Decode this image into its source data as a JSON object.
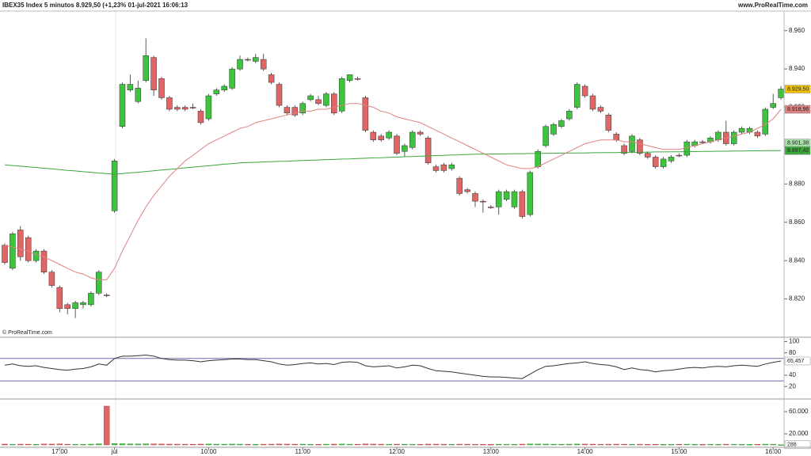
{
  "header": {
    "left": "IBEX35 Index 5 minutos 8.929,50 (+1,23% 01-jul-2021 16:06:13",
    "right": "www.ProRealTime.com",
    "copyright": "© ProRealTime.com"
  },
  "chart_data": [
    {
      "type": "candlestick",
      "categories": [
        null,
        null,
        null,
        null,
        null,
        null,
        null,
        "17:00",
        null,
        null,
        null,
        null,
        null,
        null,
        "jul",
        null,
        null,
        null,
        null,
        null,
        null,
        null,
        null,
        null,
        null,
        null,
        "10:00",
        null,
        null,
        null,
        null,
        null,
        null,
        null,
        null,
        null,
        null,
        null,
        "11:00",
        null,
        null,
        null,
        null,
        null,
        null,
        null,
        null,
        null,
        null,
        null,
        "12:00",
        null,
        null,
        null,
        null,
        null,
        null,
        null,
        null,
        null,
        null,
        null,
        "13:00",
        null,
        null,
        null,
        null,
        null,
        null,
        null,
        null,
        null,
        null,
        null,
        "14:00",
        null,
        null,
        null,
        null,
        null,
        null,
        null,
        null,
        null,
        null,
        null,
        "15:00",
        null,
        null,
        null,
        null,
        null,
        null,
        null,
        null,
        null,
        null,
        null,
        "16:00",
        null
      ],
      "open": [
        8848,
        8836,
        8856,
        8852,
        8840,
        8845,
        8834,
        8826,
        8817,
        8815,
        8817,
        8817,
        8823,
        8822,
        8866,
        8910,
        8929,
        8923,
        8934,
        8946,
        8935,
        8925,
        8920,
        8920,
        8920,
        8918,
        8914,
        8927,
        8929,
        8930,
        8940,
        8945,
        8944,
        8945,
        8937,
        8932,
        8920,
        8920,
        8917,
        8924,
        8924,
        8921,
        8927,
        8918,
        8934,
        8935,
        8925,
        8907,
        8905,
        8904,
        8905,
        8897,
        8899,
        8907,
        8904,
        8889,
        8890,
        8888,
        8883,
        8877,
        8875,
        8871,
        8868,
        8868,
        8872,
        8868,
        8876,
        8864,
        8889,
        8900,
        8906,
        8910,
        8914,
        8920,
        8931,
        8926,
        8920,
        8916,
        8906,
        8900,
        8897,
        8903,
        8896,
        8894,
        8889,
        8892,
        8895,
        8895,
        8900,
        8902,
        8902,
        8903,
        8907,
        8901,
        8907,
        8907,
        8907,
        8906,
        8920,
        8925
      ],
      "high": [
        8849,
        8855,
        8858,
        8853,
        8846,
        8846,
        8835,
        8827,
        8818,
        8819,
        8819,
        8824,
        8835,
        8823,
        8893,
        8933,
        8937,
        8934,
        8956,
        8947,
        8936,
        8926,
        8921,
        8921,
        8922,
        8919,
        8927,
        8930,
        8932,
        8941,
        8947,
        8946,
        8948,
        8948,
        8938,
        8933,
        8921,
        8921,
        8923,
        8927,
        8926,
        8928,
        8928,
        8936,
        8937,
        8936,
        8926,
        8908,
        8906,
        8908,
        8906,
        8901,
        8908,
        8908,
        8905,
        8890,
        8891,
        8891,
        8884,
        8878,
        8876,
        8872,
        8869,
        8877,
        8877,
        8877,
        8877,
        8887,
        8898,
        8911,
        8912,
        8914,
        8919,
        8933,
        8932,
        8927,
        8921,
        8917,
        8907,
        8901,
        8906,
        8904,
        8897,
        8895,
        8894,
        8895,
        8896,
        8903,
        8903,
        8903,
        8905,
        8908,
        8913,
        8908,
        8910,
        8910,
        8908,
        8920,
        8927,
        8931
      ],
      "low": [
        8838,
        8835,
        8840,
        8839,
        8839,
        8833,
        8826,
        8813,
        8812,
        8810,
        8815,
        8816,
        8822,
        8821,
        8865,
        8909,
        8928,
        8922,
        8933,
        8926,
        8924,
        8918,
        8918,
        8918,
        8919,
        8911,
        8913,
        8926,
        8928,
        8929,
        8939,
        8944,
        8943,
        8939,
        8932,
        8920,
        8916,
        8915,
        8916,
        8923,
        8921,
        8920,
        8916,
        8917,
        8933,
        8934,
        8907,
        8902,
        8902,
        8903,
        8895,
        8894,
        8898,
        8905,
        8890,
        8886,
        8886,
        8887,
        8874,
        8875,
        8868,
        8865,
        8867,
        8864,
        8871,
        8867,
        8862,
        8863,
        8888,
        8899,
        8905,
        8909,
        8913,
        8919,
        8925,
        8918,
        8917,
        8907,
        8902,
        8895,
        8896,
        8895,
        8893,
        8888,
        8888,
        8891,
        8894,
        8894,
        8899,
        8901,
        8901,
        8902,
        8900,
        8900,
        8906,
        8906,
        8904,
        8905,
        8919,
        8924
      ],
      "close": [
        8839,
        8854,
        8842,
        8840,
        8845,
        8834,
        8827,
        8815,
        8815,
        8818,
        8818,
        8823,
        8834,
        8822,
        8892,
        8932,
        8932,
        8930,
        8947,
        8929,
        8925,
        8919,
        8919,
        8919,
        8920,
        8912,
        8926,
        8929,
        8931,
        8940,
        8945,
        8945,
        8946,
        8940,
        8933,
        8921,
        8917,
        8916,
        8922,
        8926,
        8922,
        8927,
        8917,
        8935,
        8937,
        8935,
        8908,
        8903,
        8903,
        8907,
        8896,
        8900,
        8907,
        8906,
        8891,
        8887,
        8887,
        8890,
        8875,
        8876,
        8871,
        8871,
        8868,
        8876,
        8876,
        8876,
        8863,
        8886,
        8897,
        8910,
        8911,
        8913,
        8918,
        8932,
        8926,
        8919,
        8918,
        8908,
        8903,
        8896,
        8905,
        8896,
        8894,
        8889,
        8893,
        8894,
        8895,
        8902,
        8902,
        8902,
        8904,
        8907,
        8901,
        8907,
        8909,
        8909,
        8905,
        8919,
        8922,
        8929.5
      ],
      "up_color": "#3cc43c",
      "down_color": "#e06666",
      "series": [
        {
          "color": "#3aa83a",
          "values": [
            8890,
            8889.6,
            8889.3,
            8888.9,
            8888.6,
            8888.2,
            8887.9,
            8887.5,
            8887.1,
            8886.8,
            8886.4,
            8886.1,
            8885.7,
            8885.4,
            8885,
            8885.4,
            8885.8,
            8886.1,
            8886.5,
            8886.9,
            8887.3,
            8887.6,
            8888,
            8888.4,
            8888.8,
            8889.1,
            8889.5,
            8889.9,
            8890.3,
            8890.6,
            8891,
            8891.2,
            8891.3,
            8891.5,
            8891.6,
            8891.8,
            8891.9,
            8892.1,
            8892.2,
            8892.4,
            8892.5,
            8892.7,
            8892.8,
            8893,
            8893.1,
            8893.3,
            8893.4,
            8893.6,
            8893.7,
            8893.9,
            8894,
            8894.2,
            8894.3,
            8894.5,
            8894.6,
            8894.8,
            8894.9,
            8895.1,
            8895.2,
            8895.4,
            8895.5,
            8895.6,
            8895.6,
            8895.7,
            8895.7,
            8895.8,
            8895.8,
            8895.9,
            8895.9,
            8896,
            8896,
            8896.1,
            8896.1,
            8896.2,
            8896.2,
            8896.3,
            8896.3,
            8896.4,
            8896.4,
            8896.5,
            8896.5,
            8896.6,
            8896.6,
            8896.7,
            8896.7,
            8896.8,
            8896.8,
            8896.9,
            8896.9,
            8897,
            8897,
            8897.1,
            8897.1,
            8897.2,
            8897.2,
            8897.3,
            8897.3,
            8897.4,
            8897.4,
            8897.4
          ]
        },
        {
          "color": "#e08080",
          "values": [
            8848,
            8847,
            8846,
            8845,
            8843,
            8842,
            8840,
            8838,
            8836,
            8834,
            8833,
            8831,
            8830,
            8830,
            8836,
            8845,
            8853,
            8861,
            8868,
            8874,
            8879,
            8884,
            8888,
            8892,
            8895,
            8898,
            8901,
            8903,
            8905,
            8907,
            8909,
            8910,
            8912,
            8913,
            8914,
            8915,
            8916,
            8917,
            8918,
            8918,
            8919,
            8919,
            8920,
            8921,
            8922,
            8922,
            8921,
            8920,
            8918,
            8917,
            8915,
            8914,
            8913,
            8912,
            8910,
            8908,
            8906,
            8904,
            8902,
            8900,
            8898,
            8896,
            8894,
            8892,
            8890,
            8889,
            8888,
            8888,
            8889,
            8891,
            8893,
            8895,
            8897,
            8899,
            8901,
            8902,
            8903,
            8903,
            8903,
            8902,
            8902,
            8901,
            8900,
            8899,
            8898,
            8898,
            8898,
            8899,
            8900,
            8901,
            8902,
            8903,
            8904,
            8905,
            8906,
            8907,
            8909,
            8911,
            8914,
            8919
          ]
        }
      ],
      "markers": [
        {
          "value": 8929.5,
          "label": "8.929,50",
          "color": "#f2c200"
        },
        {
          "value": 8918.96,
          "label": "8.918,96",
          "color": "#e08080"
        },
        {
          "value": 8901.38,
          "label": "8.901,38",
          "color": "#a8e0a8"
        },
        {
          "value": 8897.42,
          "label": "8.897,42",
          "color": "#3aa83a"
        }
      ],
      "ylim": [
        8800,
        8976
      ],
      "yticks": [
        {
          "value": 8960,
          "label": "8.960"
        },
        {
          "value": 8940,
          "label": "8.940"
        },
        {
          "value": 8920,
          "label": "8.920"
        },
        {
          "value": 8900,
          "label": "8.900"
        },
        {
          "value": 8880,
          "label": "8.880"
        },
        {
          "value": 8860,
          "label": "8.860"
        },
        {
          "value": 8840,
          "label": "8.840"
        },
        {
          "value": 8820,
          "label": "8.820"
        }
      ]
    },
    {
      "type": "line",
      "series": [
        {
          "color": "#333333",
          "values": [
            58,
            60,
            57,
            56,
            57,
            54,
            52,
            50,
            49,
            51,
            52,
            55,
            60,
            58,
            70,
            74,
            74,
            75,
            76,
            74,
            70,
            68,
            67,
            67,
            66,
            64,
            66,
            67,
            68,
            69,
            69,
            68,
            68,
            66,
            64,
            60,
            58,
            59,
            61,
            62,
            60,
            61,
            59,
            63,
            64,
            63,
            57,
            55,
            56,
            57,
            53,
            55,
            58,
            57,
            52,
            48,
            47,
            46,
            44,
            42,
            40,
            38,
            37,
            37,
            36,
            35,
            34,
            42,
            50,
            56,
            57,
            59,
            61,
            62,
            64,
            61,
            59,
            58,
            55,
            50,
            53,
            50,
            49,
            46,
            48,
            49,
            51,
            53,
            54,
            53,
            55,
            56,
            55,
            57,
            58,
            57,
            56,
            60,
            63,
            65.457
          ]
        }
      ],
      "levels": [
        70,
        30
      ],
      "markers": [
        {
          "value": 65.457,
          "label": "65,457",
          "color": "#ffffff"
        }
      ],
      "ylim": [
        -1,
        105
      ],
      "yticks": [
        100,
        80,
        40,
        20
      ]
    },
    {
      "type": "bar",
      "values": [
        1500,
        1200,
        1400,
        1300,
        1100,
        1600,
        1500,
        1800,
        1300,
        1200,
        1100,
        1400,
        2000,
        70000,
        2500,
        2200,
        1900,
        1700,
        2000,
        1800,
        1600,
        1500,
        1400,
        1300,
        1200,
        1500,
        1600,
        1400,
        1300,
        1500,
        1400,
        1200,
        1100,
        1300,
        1400,
        1600,
        1500,
        1300,
        1400,
        1200,
        1100,
        1300,
        1500,
        1600,
        1300,
        1200,
        1700,
        1500,
        1300,
        1200,
        1400,
        1300,
        1200,
        1100,
        1500,
        1400,
        1300,
        1200,
        1400,
        1300,
        1200,
        1100,
        1000,
        1300,
        1200,
        1100,
        1400,
        1700,
        1600,
        1500,
        1300,
        1200,
        1400,
        1600,
        1500,
        1400,
        1200,
        1300,
        1400,
        1300,
        1200,
        1300,
        1100,
        1200,
        1000,
        1100,
        1200,
        1300,
        1100,
        1000,
        1200,
        1100,
        1300,
        1200,
        1100,
        1000,
        1100,
        1400,
        1300,
        288
      ],
      "markers": [
        {
          "value": 288,
          "label": "288",
          "color": "#ffffff"
        }
      ],
      "ylim": [
        0,
        80000
      ],
      "yticks": [
        {
          "value": 60000,
          "label": "60.000"
        },
        {
          "value": 20000,
          "label": "20.000"
        }
      ]
    }
  ]
}
